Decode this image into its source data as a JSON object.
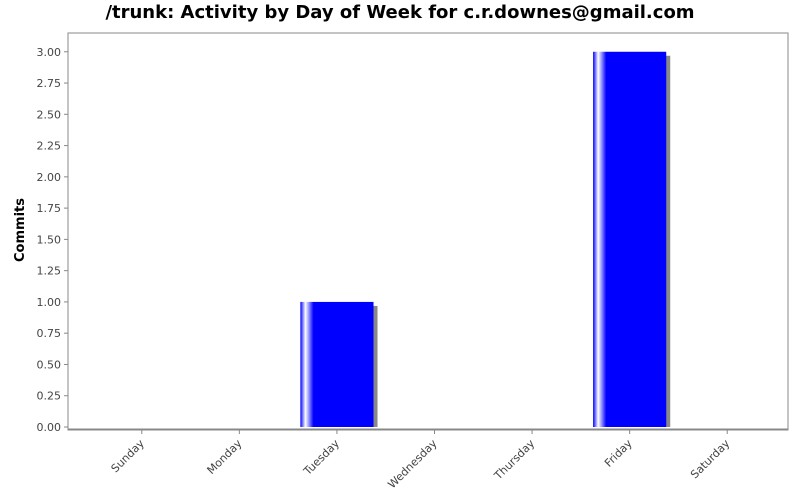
{
  "chart_data": {
    "type": "bar",
    "title": "/trunk: Activity by Day of Week for c.r.downes@gmail.com",
    "xlabel": "",
    "ylabel": "Commits",
    "categories": [
      "Sunday",
      "Monday",
      "Tuesday",
      "Wednesday",
      "Thursday",
      "Friday",
      "Saturday"
    ],
    "values": [
      0,
      0,
      1,
      0,
      0,
      3,
      0
    ],
    "ylim": [
      0,
      3.15
    ],
    "yticks": [
      "0.00",
      "0.25",
      "0.50",
      "0.75",
      "1.00",
      "1.25",
      "1.50",
      "1.75",
      "2.00",
      "2.25",
      "2.50",
      "2.75",
      "3.00"
    ],
    "grid": false,
    "legend": "none",
    "colors": {
      "bar": "#0000ff",
      "bar_highlight": "#ffffff",
      "bar_shadow": "#888888",
      "plot_border": "#888888",
      "axis": "#888888"
    }
  }
}
